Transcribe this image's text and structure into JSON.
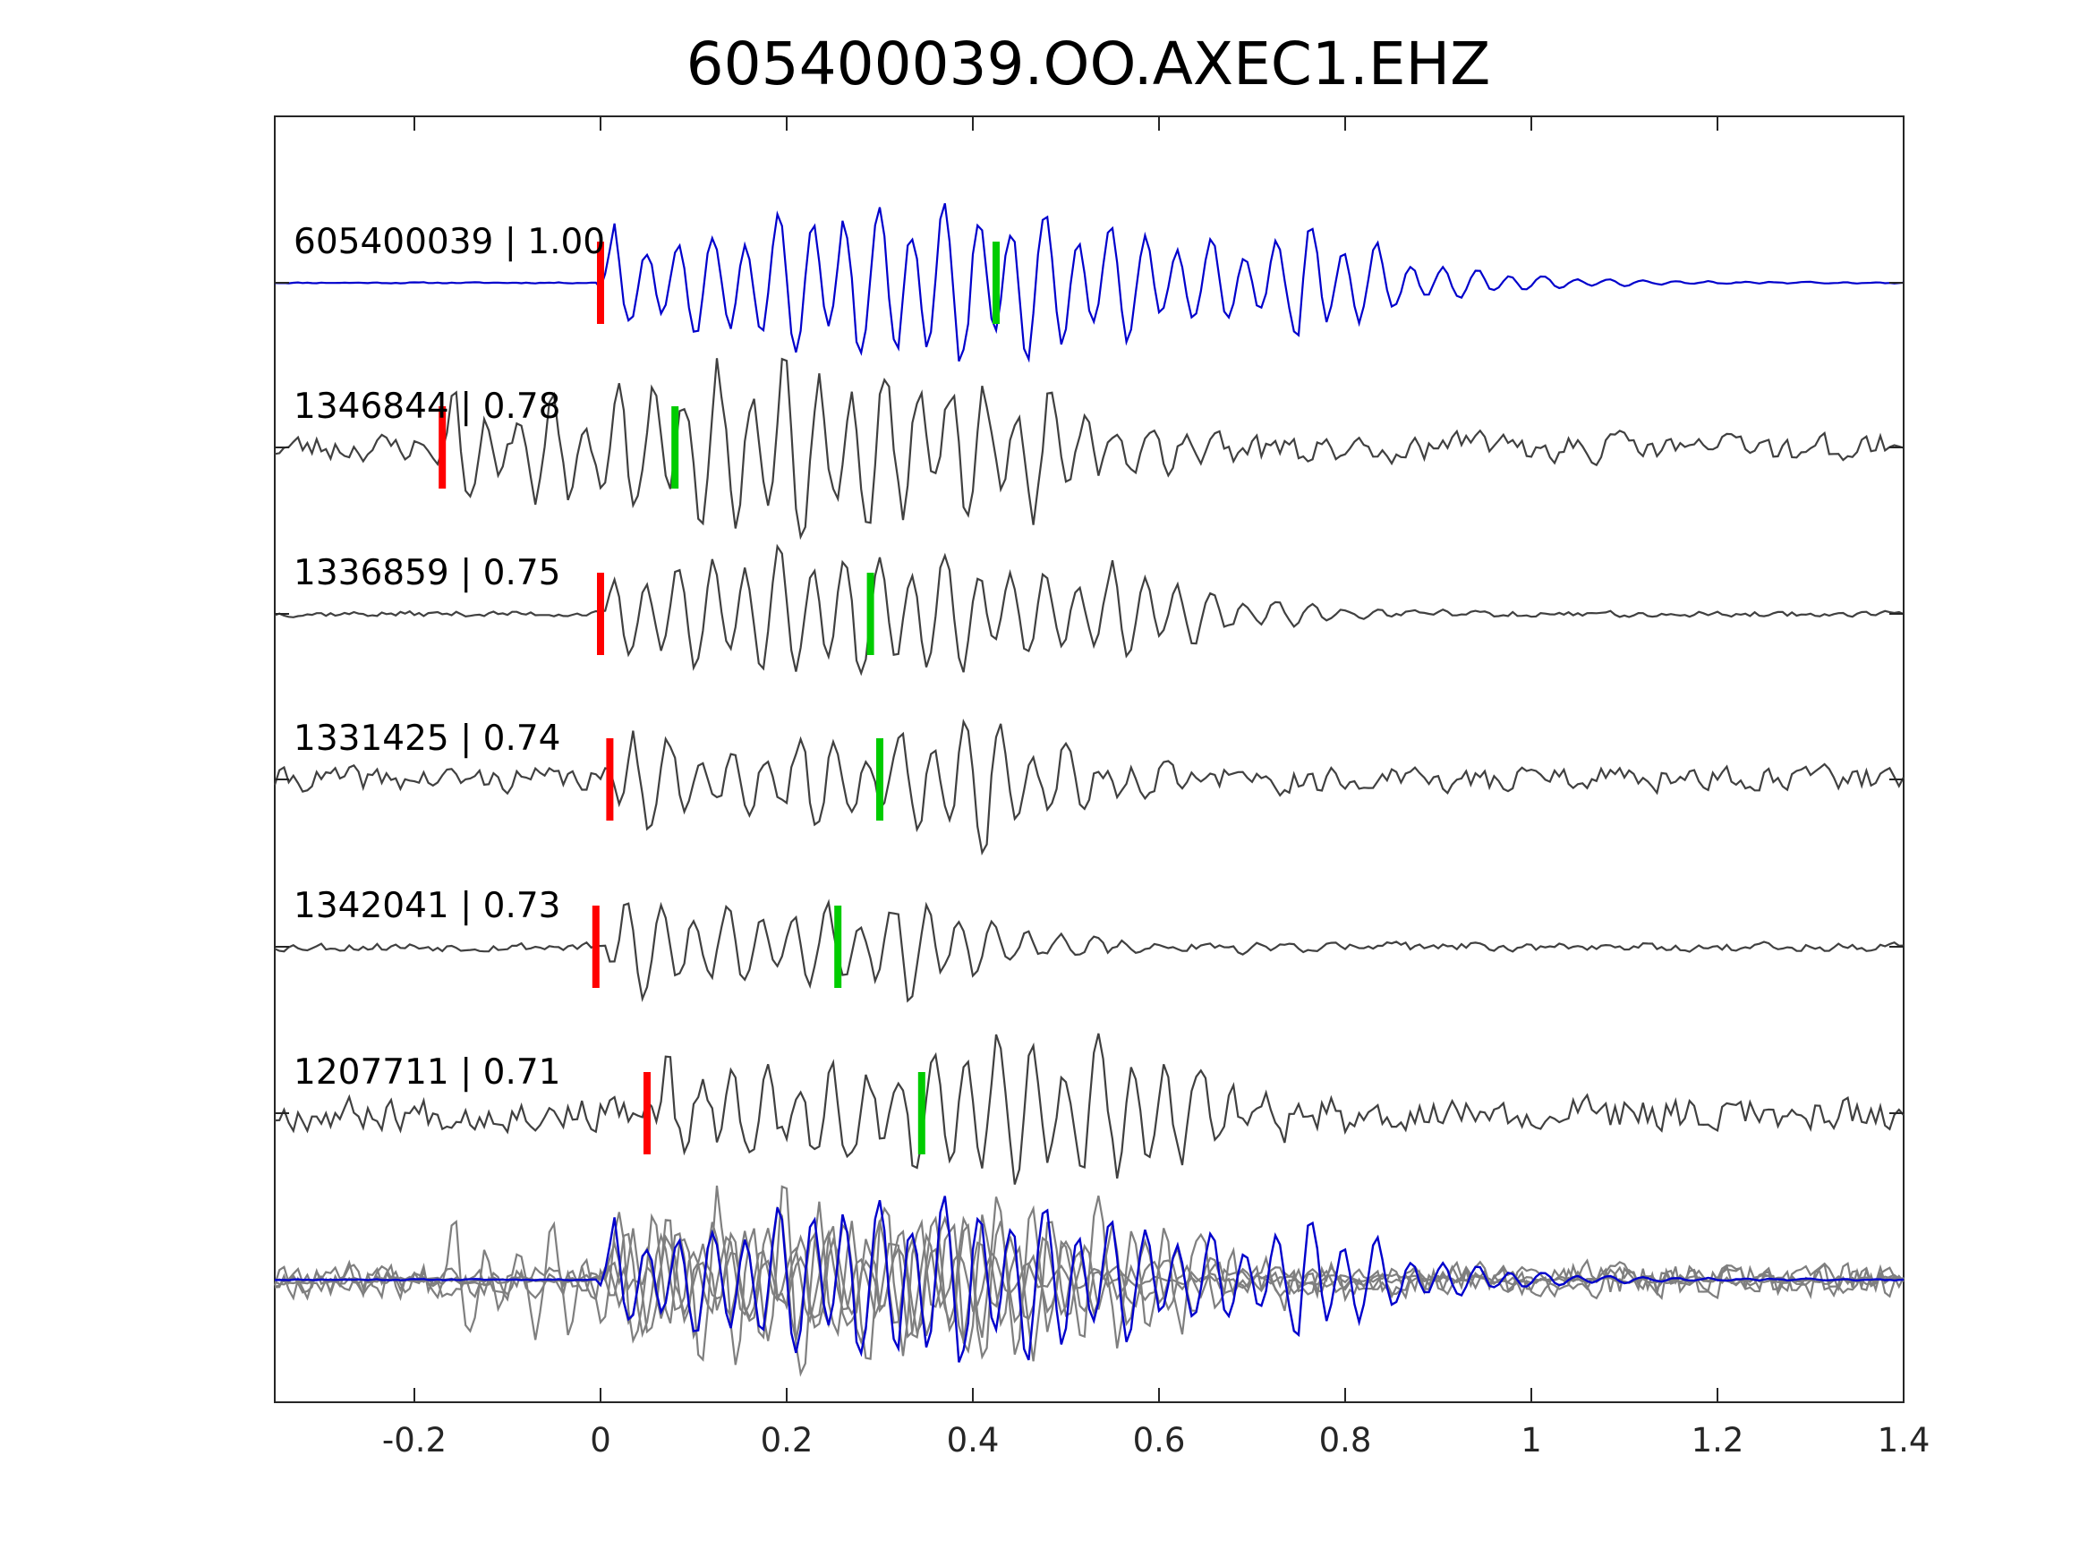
{
  "chart_data": {
    "type": "line",
    "title": "605400039.OO.AXEC1.EHZ",
    "xlabel": "",
    "ylabel": "",
    "xlim": [
      -0.35,
      1.4
    ],
    "xticks": [
      -0.2,
      0,
      0.2,
      0.4,
      0.6,
      0.8,
      1,
      1.2,
      1.4
    ],
    "xtick_labels": [
      "-0.2",
      "0",
      "0.2",
      "0.4",
      "0.6",
      "0.8",
      "1",
      "1.2",
      "1.4"
    ],
    "grid": false,
    "colors": {
      "template": "#0000cc",
      "match": "#404040",
      "overlay": "#7f7f7f",
      "p_pick": "#ff0000",
      "s_pick": "#00cc00",
      "axis": "#262626"
    },
    "traces": [
      {
        "label": "605400039 | 1.00",
        "id": "605400039",
        "cc": 1.0,
        "color": "template",
        "p_pick": 0.0,
        "s_pick": 0.425,
        "seed": 11,
        "noise": 0.01,
        "signal_start": -0.005,
        "signal_end": 0.75,
        "amp": 1.0
      },
      {
        "label": "1346844 | 0.78",
        "id": "1346844",
        "cc": 0.78,
        "color": "match",
        "p_pick": -0.17,
        "s_pick": 0.08,
        "seed": 23,
        "noise": 0.25,
        "signal_start": -0.18,
        "signal_end": 0.45,
        "amp": 1.0
      },
      {
        "label": "1336859 | 0.75",
        "id": "1336859",
        "cc": 0.75,
        "color": "match",
        "p_pick": 0.0,
        "s_pick": 0.29,
        "seed": 37,
        "noise": 0.05,
        "signal_start": 0.0,
        "signal_end": 0.55,
        "amp": 0.8
      },
      {
        "label": "1331425 | 0.74",
        "id": "1331425",
        "cc": 0.74,
        "color": "match",
        "p_pick": 0.01,
        "s_pick": 0.3,
        "seed": 41,
        "noise": 0.22,
        "signal_start": 0.01,
        "signal_end": 0.42,
        "amp": 0.9
      },
      {
        "label": "1342041 | 0.73",
        "id": "1342041",
        "cc": 0.73,
        "color": "match",
        "p_pick": -0.005,
        "s_pick": 0.255,
        "seed": 53,
        "noise": 0.08,
        "signal_start": 0.0,
        "signal_end": 0.32,
        "amp": 0.85
      },
      {
        "label": "1207711 | 0.71",
        "id": "1207711",
        "cc": 0.71,
        "color": "match",
        "p_pick": 0.05,
        "s_pick": 0.345,
        "seed": 67,
        "noise": 0.3,
        "signal_start": 0.05,
        "signal_end": 0.58,
        "amp": 0.85
      }
    ]
  }
}
